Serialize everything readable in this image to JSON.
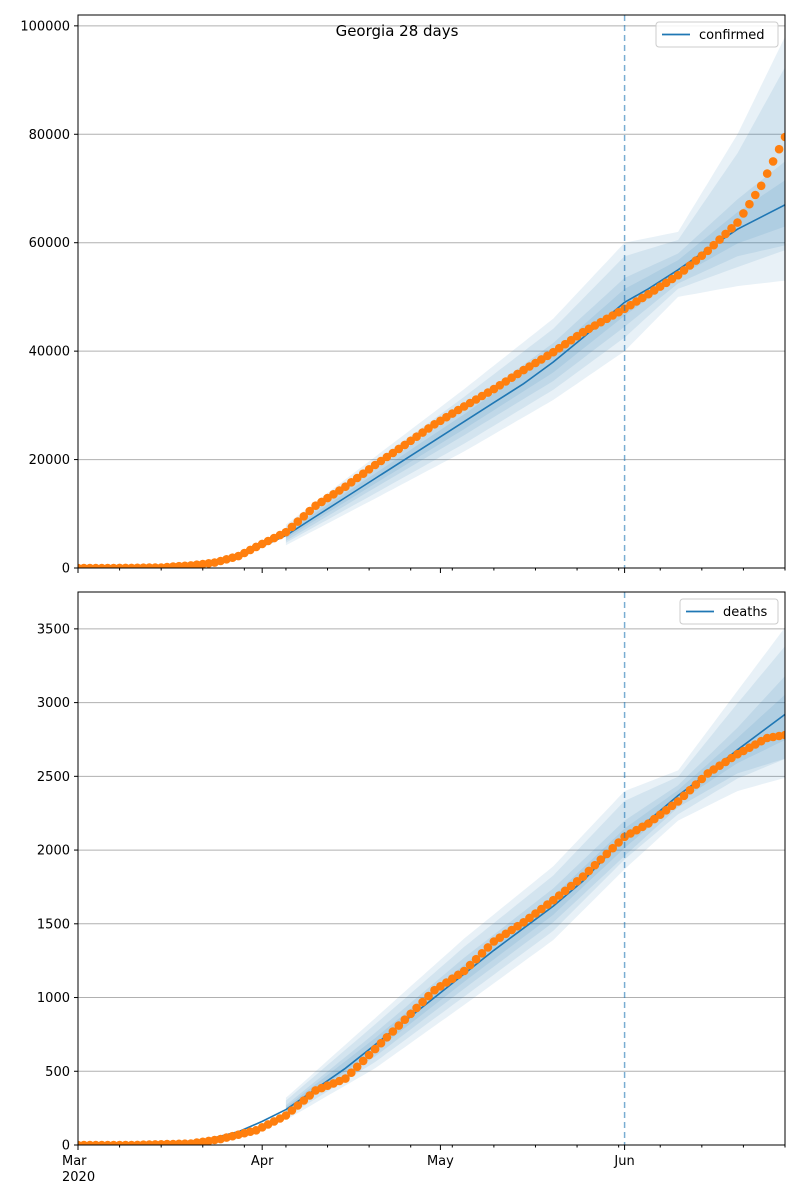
{
  "chart_data": [
    {
      "type": "line",
      "title": "Georgia 28 days",
      "xlabel": "",
      "ylabel": "",
      "x_range": [
        "2020-03-01",
        "2020-06-28"
      ],
      "ylim": [
        0,
        102000
      ],
      "yticks": [
        0,
        20000,
        40000,
        60000,
        80000,
        100000
      ],
      "grid": "horizontal",
      "legend_position": "top-right",
      "forecast_start": "2020-06-01",
      "series": [
        {
          "name": "confirmed",
          "kind": "model-line",
          "color": "#1f77b4",
          "points": [
            [
              "2020-03-01",
              0
            ],
            [
              "2020-03-10",
              0
            ],
            [
              "2020-03-20",
              200
            ],
            [
              "2020-03-25",
              1000
            ],
            [
              "2020-03-30",
              3000
            ],
            [
              "2020-04-05",
              6000
            ],
            [
              "2020-04-10",
              9500
            ],
            [
              "2020-04-15",
              13000
            ],
            [
              "2020-04-20",
              16500
            ],
            [
              "2020-04-25",
              20000
            ],
            [
              "2020-04-30",
              23500
            ],
            [
              "2020-05-05",
              27000
            ],
            [
              "2020-05-10",
              30500
            ],
            [
              "2020-05-15",
              34000
            ],
            [
              "2020-05-20",
              38000
            ],
            [
              "2020-05-25",
              42500
            ],
            [
              "2020-06-01",
              49000
            ],
            [
              "2020-06-05",
              51500
            ],
            [
              "2020-06-10",
              55000
            ],
            [
              "2020-06-15",
              58800
            ],
            [
              "2020-06-20",
              62500
            ],
            [
              "2020-06-28",
              67000
            ]
          ],
          "band_inner": [
            [
              "2020-04-05",
              5000,
              7000
            ],
            [
              "2020-04-20",
              14800,
              18200
            ],
            [
              "2020-05-05",
              24500,
              29500
            ],
            [
              "2020-05-20",
              34500,
              41500
            ],
            [
              "2020-06-01",
              44500,
              53500
            ],
            [
              "2020-06-10",
              52500,
              58000
            ],
            [
              "2020-06-20",
              57500,
              68000
            ],
            [
              "2020-06-28",
              59500,
              75000
            ]
          ],
          "band_outer": [
            [
              "2020-04-05",
              4200,
              8000
            ],
            [
              "2020-04-20",
              12800,
              20500
            ],
            [
              "2020-05-05",
              21500,
              33000
            ],
            [
              "2020-05-20",
              31000,
              46000
            ],
            [
              "2020-06-01",
              40000,
              60000
            ],
            [
              "2020-06-10",
              50000,
              62000
            ],
            [
              "2020-06-20",
              52000,
              80000
            ],
            [
              "2020-06-28",
              53000,
              98000
            ]
          ]
        },
        {
          "name": "",
          "kind": "observed-points",
          "color": "#ff7f0e",
          "points": [
            [
              "2020-03-01",
              0
            ],
            [
              "2020-03-05",
              2
            ],
            [
              "2020-03-10",
              20
            ],
            [
              "2020-03-15",
              99
            ],
            [
              "2020-03-20",
              485
            ],
            [
              "2020-03-24",
              1000
            ],
            [
              "2020-03-28",
              2200
            ],
            [
              "2020-03-31",
              3900
            ],
            [
              "2020-04-05",
              6600
            ],
            [
              "2020-04-10",
              11500
            ],
            [
              "2020-04-15",
              15000
            ],
            [
              "2020-04-20",
              19000
            ],
            [
              "2020-04-25",
              22700
            ],
            [
              "2020-04-30",
              26500
            ],
            [
              "2020-05-05",
              29800
            ],
            [
              "2020-05-10",
              33000
            ],
            [
              "2020-05-15",
              36500
            ],
            [
              "2020-05-20",
              39800
            ],
            [
              "2020-05-25",
              43500
            ],
            [
              "2020-06-01",
              47800
            ],
            [
              "2020-06-05",
              50500
            ],
            [
              "2020-06-10",
              54000
            ],
            [
              "2020-06-15",
              58500
            ],
            [
              "2020-06-20",
              63700
            ],
            [
              "2020-06-24",
              70500
            ],
            [
              "2020-06-28",
              79500
            ]
          ]
        }
      ]
    },
    {
      "type": "line",
      "title": "",
      "xlabel": "",
      "ylabel": "",
      "x_range": [
        "2020-03-01",
        "2020-06-28"
      ],
      "ylim": [
        0,
        3750
      ],
      "yticks": [
        0,
        500,
        1000,
        1500,
        2000,
        2500,
        3000,
        3500
      ],
      "grid": "horizontal",
      "legend_position": "top-right",
      "forecast_start": "2020-06-01",
      "x_major_ticks": [
        "Mar\n2020",
        "Apr",
        "May",
        "Jun"
      ],
      "series": [
        {
          "name": "deaths",
          "kind": "model-line",
          "color": "#1f77b4",
          "points": [
            [
              "2020-03-01",
              0
            ],
            [
              "2020-03-15",
              0
            ],
            [
              "2020-03-22",
              30
            ],
            [
              "2020-03-28",
              90
            ],
            [
              "2020-04-01",
              160
            ],
            [
              "2020-04-05",
              240
            ],
            [
              "2020-04-10",
              380
            ],
            [
              "2020-04-15",
              520
            ],
            [
              "2020-04-20",
              680
            ],
            [
              "2020-04-25",
              840
            ],
            [
              "2020-04-30",
              1000
            ],
            [
              "2020-05-05",
              1160
            ],
            [
              "2020-05-10",
              1320
            ],
            [
              "2020-05-15",
              1470
            ],
            [
              "2020-05-20",
              1620
            ],
            [
              "2020-05-25",
              1790
            ],
            [
              "2020-06-01",
              2090
            ],
            [
              "2020-06-05",
              2200
            ],
            [
              "2020-06-10",
              2370
            ],
            [
              "2020-06-15",
              2520
            ],
            [
              "2020-06-20",
              2680
            ],
            [
              "2020-06-28",
              2920
            ]
          ],
          "band_inner": [
            [
              "2020-04-05",
              210,
              270
            ],
            [
              "2020-04-20",
              600,
              760
            ],
            [
              "2020-05-05",
              1060,
              1270
            ],
            [
              "2020-05-20",
              1510,
              1740
            ],
            [
              "2020-06-01",
              1960,
              2200
            ],
            [
              "2020-06-10",
              2290,
              2440
            ],
            [
              "2020-06-20",
              2520,
              2830
            ],
            [
              "2020-06-28",
              2620,
              3180
            ]
          ],
          "band_outer": [
            [
              "2020-04-05",
              170,
              320
            ],
            [
              "2020-04-20",
              520,
              860
            ],
            [
              "2020-05-05",
              950,
              1400
            ],
            [
              "2020-05-20",
              1390,
              1890
            ],
            [
              "2020-06-01",
              1870,
              2400
            ],
            [
              "2020-06-10",
              2200,
              2540
            ],
            [
              "2020-06-20",
              2400,
              3080
            ],
            [
              "2020-06-28",
              2490,
              3510
            ]
          ]
        },
        {
          "name": "",
          "kind": "observed-points",
          "color": "#ff7f0e",
          "points": [
            [
              "2020-03-01",
              0
            ],
            [
              "2020-03-10",
              0
            ],
            [
              "2020-03-20",
              10
            ],
            [
              "2020-03-25",
              40
            ],
            [
              "2020-03-31",
              100
            ],
            [
              "2020-04-05",
              200
            ],
            [
              "2020-04-10",
              370
            ],
            [
              "2020-04-15",
              450
            ],
            [
              "2020-04-20",
              650
            ],
            [
              "2020-04-25",
              850
            ],
            [
              "2020-04-30",
              1050
            ],
            [
              "2020-05-05",
              1180
            ],
            [
              "2020-05-10",
              1380
            ],
            [
              "2020-05-15",
              1510
            ],
            [
              "2020-05-20",
              1660
            ],
            [
              "2020-05-25",
              1820
            ],
            [
              "2020-06-01",
              2090
            ],
            [
              "2020-06-05",
              2180
            ],
            [
              "2020-06-10",
              2330
            ],
            [
              "2020-06-15",
              2520
            ],
            [
              "2020-06-20",
              2650
            ],
            [
              "2020-06-25",
              2760
            ],
            [
              "2020-06-28",
              2780
            ]
          ]
        }
      ]
    }
  ]
}
